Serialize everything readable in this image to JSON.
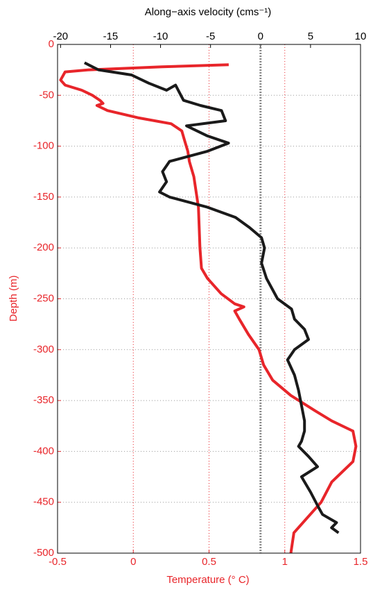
{
  "chart_data": {
    "type": "line",
    "title_top": "Along−axis velocity (cms⁻¹)",
    "xlabel": "Temperature (° C)",
    "ylabel": "Depth (m)",
    "xlim": [
      -0.5,
      1.5
    ],
    "xticks": [
      -0.5,
      0,
      0.5,
      1,
      1.5
    ],
    "x2lim": [
      -20.3,
      10
    ],
    "x2ticks": [
      -20,
      -15,
      -10,
      -5,
      0,
      5,
      10
    ],
    "ylim": [
      -500,
      0
    ],
    "yticks": [
      0,
      -50,
      -100,
      -150,
      -200,
      -250,
      -300,
      -350,
      -400,
      -450,
      -500
    ],
    "axis_color": "#e8252a",
    "grid": true,
    "velocity_reference": 0,
    "series": [
      {
        "color": "#e8252a",
        "axis": "x",
        "x": [
          0.63,
          0.19,
          -0.29,
          -0.45,
          -0.48,
          -0.45,
          -0.34,
          -0.27,
          -0.22,
          -0.2,
          -0.24,
          -0.17,
          0.03,
          0.25,
          0.32,
          0.34,
          0.36,
          0.37,
          0.4,
          0.42,
          0.43,
          0.44,
          0.45,
          0.49,
          0.58,
          0.67,
          0.73,
          0.67,
          0.7,
          0.76,
          0.83,
          0.86,
          0.92,
          1.04,
          1.2,
          1.31,
          1.45,
          1.47,
          1.45,
          1.31,
          1.24,
          1.15,
          1.06,
          1.05,
          1.04
        ],
        "y": [
          -20,
          -22,
          -25,
          -27,
          -35,
          -40,
          -45,
          -50,
          -55,
          -58,
          -60,
          -65,
          -72,
          -78,
          -85,
          -95,
          -105,
          -115,
          -130,
          -150,
          -160,
          -200,
          -220,
          -230,
          -245,
          -255,
          -258,
          -262,
          -270,
          -285,
          -300,
          -315,
          -330,
          -345,
          -360,
          -370,
          -380,
          -395,
          -410,
          -430,
          -450,
          -465,
          -480,
          -490,
          -500
        ]
      },
      {
        "color": "#1a1a1a",
        "axis": "x2",
        "x": [
          -17.6,
          -16.2,
          -12.9,
          -11.2,
          -9.4,
          -8.5,
          -7.7,
          -6,
          -3.9,
          -3.5,
          -7.4,
          -5.3,
          -3.2,
          -5.3,
          -9.1,
          -9.8,
          -9.4,
          -10.1,
          -9.1,
          -5.3,
          -2.5,
          -1.1,
          0.1,
          0.4,
          0.1,
          0.6,
          1.7,
          3.1,
          3.4,
          4.4,
          4.8,
          3.4,
          2.7,
          3.4,
          3.8,
          4.1,
          4.4,
          4.4,
          4.1,
          3.8,
          4.8,
          5.7,
          4.1,
          5,
          5.8,
          6.2,
          7.6,
          7.1,
          7.8
        ],
        "y": [
          -18,
          -25,
          -30,
          -38,
          -45,
          -40,
          -55,
          -60,
          -65,
          -75,
          -80,
          -90,
          -97,
          -105,
          -115,
          -125,
          -135,
          -145,
          -150,
          -160,
          -170,
          -180,
          -190,
          -200,
          -215,
          -230,
          -250,
          -260,
          -270,
          -280,
          -290,
          -300,
          -310,
          -325,
          -340,
          -355,
          -370,
          -380,
          -390,
          -395,
          -405,
          -415,
          -425,
          -440,
          -455,
          -462,
          -470,
          -475,
          -480
        ]
      }
    ]
  }
}
